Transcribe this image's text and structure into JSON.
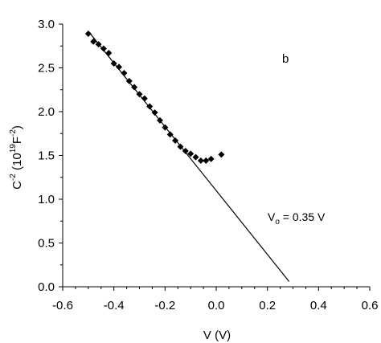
{
  "chart_data": {
    "type": "scatter",
    "title": "",
    "panel_label": "b",
    "xlabel": "V (V)",
    "ylabel": {
      "base": "C",
      "sup1": "-2",
      "mid": " (10",
      "sup2": "19",
      "mid2": "F",
      "sup3": "-2",
      "end": ")"
    },
    "xlim": [
      -0.6,
      0.6
    ],
    "ylim": [
      0.0,
      3.0
    ],
    "xticks": [
      -0.6,
      -0.4,
      -0.2,
      0.0,
      0.2,
      0.4,
      0.6
    ],
    "xtick_labels": [
      "-0.6",
      "-0.4",
      "-0.2",
      "0.0",
      "0.2",
      "0.4",
      "0.6"
    ],
    "yticks": [
      0.0,
      0.5,
      1.0,
      1.5,
      2.0,
      2.5,
      3.0
    ],
    "ytick_labels": [
      "0.0",
      "0.5",
      "1.0",
      "1.5",
      "2.0",
      "2.5",
      "3.0"
    ],
    "grid": false,
    "series": [
      {
        "marker": "diamond",
        "color": "#000000",
        "x": [
          -0.5,
          -0.48,
          -0.46,
          -0.44,
          -0.42,
          -0.4,
          -0.38,
          -0.36,
          -0.34,
          -0.32,
          -0.3,
          -0.28,
          -0.26,
          -0.24,
          -0.22,
          -0.2,
          -0.18,
          -0.16,
          -0.14,
          -0.12,
          -0.1,
          -0.08,
          -0.06,
          -0.04,
          -0.02,
          0.02
        ],
        "y": [
          2.89,
          2.8,
          2.77,
          2.72,
          2.67,
          2.55,
          2.51,
          2.44,
          2.35,
          2.28,
          2.2,
          2.15,
          2.06,
          1.99,
          1.9,
          1.82,
          1.74,
          1.67,
          1.6,
          1.55,
          1.52,
          1.48,
          1.44,
          1.44,
          1.46,
          1.51
        ]
      }
    ],
    "fit_line": {
      "x": [
        -0.5,
        0.285
      ],
      "y": [
        2.92,
        0.06
      ],
      "color": "#000000"
    },
    "annotation": {
      "main": "V",
      "sub": "o",
      "rest": " = 0.35 V"
    }
  }
}
